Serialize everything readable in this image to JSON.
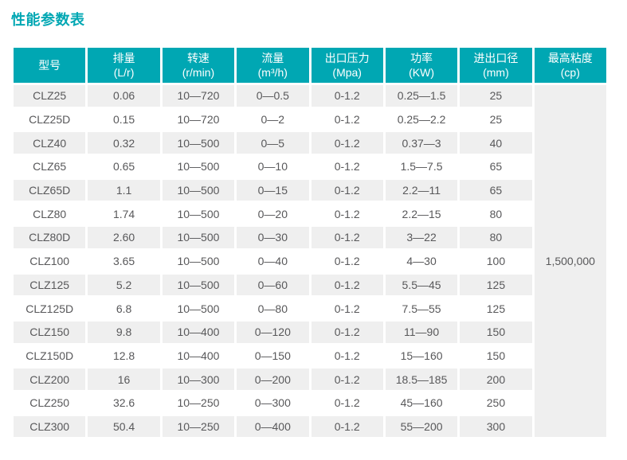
{
  "title": "性能参数表",
  "colors": {
    "accent_teal": "#00a7b3",
    "header_text": "#ffffff",
    "row_stripe": "#efefef",
    "body_text": "#58585a"
  },
  "chart_data": {
    "type": "table",
    "title": "性能参数表",
    "columns": [
      {
        "key": "model",
        "label": "型号",
        "unit": ""
      },
      {
        "key": "displacement",
        "label": "排量",
        "unit": "(L/r)"
      },
      {
        "key": "speed",
        "label": "转速",
        "unit": "(r/min)"
      },
      {
        "key": "flow",
        "label": "流量",
        "unit": "(m³/h)"
      },
      {
        "key": "pressure",
        "label": "出口压力",
        "unit": "(Mpa)"
      },
      {
        "key": "power",
        "label": "功率",
        "unit": "(KW)"
      },
      {
        "key": "diameter",
        "label": "进出口径",
        "unit": "(mm)"
      },
      {
        "key": "viscosity",
        "label": "最高粘度",
        "unit": "(cp)"
      }
    ],
    "rows": [
      [
        "CLZ25",
        "0.06",
        "10—720",
        "0—0.5",
        "0-1.2",
        "0.25—1.5",
        "25"
      ],
      [
        "CLZ25D",
        "0.15",
        "10—720",
        "0—2",
        "0-1.2",
        "0.25—2.2",
        "25"
      ],
      [
        "CLZ40",
        "0.32",
        "10—500",
        "0—5",
        "0-1.2",
        "0.37—3",
        "40"
      ],
      [
        "CLZ65",
        "0.65",
        "10—500",
        "0—10",
        "0-1.2",
        "1.5—7.5",
        "65"
      ],
      [
        "CLZ65D",
        "1.1",
        "10—500",
        "0—15",
        "0-1.2",
        "2.2—11",
        "65"
      ],
      [
        "CLZ80",
        "1.74",
        "10—500",
        "0—20",
        "0-1.2",
        "2.2—15",
        "80"
      ],
      [
        "CLZ80D",
        "2.60",
        "10—500",
        "0—30",
        "0-1.2",
        "3—22",
        "80"
      ],
      [
        "CLZ100",
        "3.65",
        "10—500",
        "0—40",
        "0-1.2",
        "4—30",
        "100"
      ],
      [
        "CLZ125",
        "5.2",
        "10—500",
        "0—60",
        "0-1.2",
        "5.5—45",
        "125"
      ],
      [
        "CLZ125D",
        "6.8",
        "10—500",
        "0—80",
        "0-1.2",
        "7.5—55",
        "125"
      ],
      [
        "CLZ150",
        "9.8",
        "10—400",
        "0—120",
        "0-1.2",
        "11—90",
        "150"
      ],
      [
        "CLZ150D",
        "12.8",
        "10—400",
        "0—150",
        "0-1.2",
        "15—160",
        "150"
      ],
      [
        "CLZ200",
        "16",
        "10—300",
        "0—200",
        "0-1.2",
        "18.5—185",
        "200"
      ],
      [
        "CLZ250",
        "32.6",
        "10—250",
        "0—300",
        "0-1.2",
        "45—160",
        "250"
      ],
      [
        "CLZ300",
        "50.4",
        "10—250",
        "0—400",
        "0-1.2",
        "55—200",
        "300"
      ]
    ],
    "merged_last_column_value": "1,500,000"
  }
}
